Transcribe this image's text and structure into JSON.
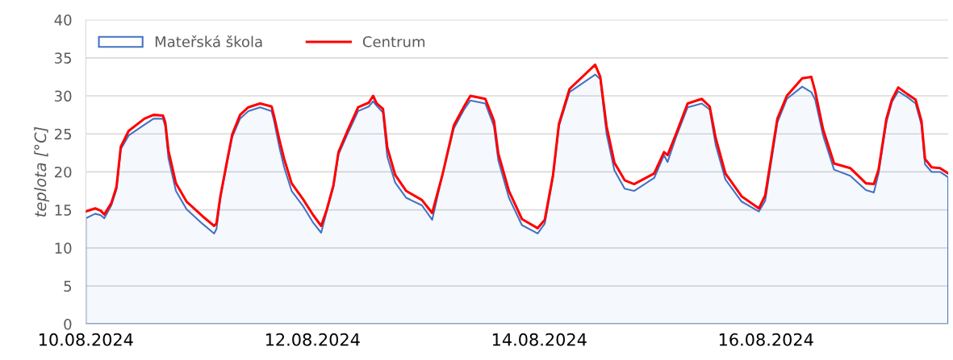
{
  "chart_data": {
    "type": "line",
    "ylabel": "teplota [°C]",
    "x": [
      "2024-08-10T00:00",
      "2024-08-10T02:00",
      "2024-08-10T03:10",
      "2024-08-10T03:55",
      "2024-08-10T05:25",
      "2024-08-10T06:30",
      "2024-08-10T07:25",
      "2024-08-10T09:05",
      "2024-08-10T12:25",
      "2024-08-10T14:20",
      "2024-08-10T16:20",
      "2024-08-10T16:50",
      "2024-08-10T17:30",
      "2024-08-10T19:05",
      "2024-08-10T21:20",
      "2024-08-11T00:40",
      "2024-08-11T03:10",
      "2024-08-11T03:40",
      "2024-08-11T04:30",
      "2024-08-11T06:00",
      "2024-08-11T07:00",
      "2024-08-11T08:40",
      "2024-08-11T10:25",
      "2024-08-11T12:55",
      "2024-08-11T15:20",
      "2024-08-11T15:50",
      "2024-08-11T17:00",
      "2024-08-11T18:00",
      "2024-08-11T19:35",
      "2024-08-11T22:00",
      "2024-08-12T00:10",
      "2024-08-12T01:50",
      "2024-08-12T03:00",
      "2024-08-12T04:25",
      "2024-08-12T05:30",
      "2024-08-12T07:25",
      "2024-08-12T09:40",
      "2024-08-12T11:55",
      "2024-08-12T12:50",
      "2024-08-12T13:35",
      "2024-08-12T14:55",
      "2024-08-12T15:50",
      "2024-08-12T17:30",
      "2024-08-12T19:50",
      "2024-08-12T23:10",
      "2024-08-13T01:20",
      "2024-08-13T03:30",
      "2024-08-13T05:55",
      "2024-08-13T08:05",
      "2024-08-13T09:25",
      "2024-08-13T12:35",
      "2024-08-13T14:25",
      "2024-08-13T15:20",
      "2024-08-13T17:35",
      "2024-08-13T20:20",
      "2024-08-13T23:40",
      "2024-08-14T01:10",
      "2024-08-14T02:55",
      "2024-08-14T04:10",
      "2024-08-14T06:25",
      "2024-08-14T11:50",
      "2024-08-14T12:55",
      "2024-08-14T14:15",
      "2024-08-14T15:55",
      "2024-08-14T18:05",
      "2024-08-14T20:05",
      "2024-08-15T00:20",
      "2024-08-15T02:25",
      "2024-08-15T03:10",
      "2024-08-15T04:55",
      "2024-08-15T07:25",
      "2024-08-15T10:25",
      "2024-08-15T12:05",
      "2024-08-15T13:20",
      "2024-08-15T15:25",
      "2024-08-15T18:50",
      "2024-08-15T22:30",
      "2024-08-15T23:50",
      "2024-08-16T02:25",
      "2024-08-16T04:25",
      "2024-08-16T07:40",
      "2024-08-16T09:35",
      "2024-08-16T10:25",
      "2024-08-16T12:05",
      "2024-08-16T14:25",
      "2024-08-16T17:50",
      "2024-08-16T21:10",
      "2024-08-16T22:50",
      "2024-08-16T23:50",
      "2024-08-17T01:30",
      "2024-08-17T02:40",
      "2024-08-17T04:00",
      "2024-08-17T06:00",
      "2024-08-17T07:40",
      "2024-08-17T08:55",
      "2024-08-17T09:40",
      "2024-08-17T11:05",
      "2024-08-17T12:50",
      "2024-08-17T14:35"
    ],
    "series": [
      {
        "name": "Mateřská škola",
        "type": "area",
        "color": "#4472c4",
        "values": [
          13.9,
          14.5,
          14.3,
          13.9,
          15.6,
          17.7,
          23,
          24.8,
          26.2,
          27,
          27,
          26,
          21.8,
          17.5,
          15.1,
          13.2,
          11.9,
          12.5,
          16.6,
          21.5,
          24.6,
          27,
          28,
          28.5,
          28,
          26.8,
          23.2,
          20.6,
          17.5,
          15.5,
          13.3,
          12,
          14.8,
          18,
          22.3,
          25,
          28,
          28.6,
          29.3,
          28.7,
          27.8,
          22,
          18.6,
          16.6,
          15.6,
          13.7,
          19.6,
          25.7,
          28.2,
          29.4,
          29,
          26,
          21.5,
          16.6,
          13,
          11.9,
          13.2,
          19.3,
          26,
          30.5,
          32.8,
          32.2,
          25,
          20.2,
          17.8,
          17.5,
          19.2,
          22.2,
          21.3,
          24.5,
          28.5,
          29,
          28.2,
          23.6,
          19,
          16.1,
          14.8,
          16.2,
          26.5,
          29.6,
          31.2,
          30.5,
          29.5,
          24.8,
          20.3,
          19.5,
          17.6,
          17.3,
          19.8,
          26.5,
          29.2,
          30.6,
          29.8,
          29,
          26.2,
          21,
          20,
          20,
          19.3
        ]
      },
      {
        "name": "Centrum",
        "color": "#ff0000",
        "values": [
          14.8,
          15.2,
          14.9,
          14.4,
          15.9,
          18,
          23.3,
          25.4,
          27,
          27.5,
          27.4,
          26.5,
          22.8,
          18.5,
          16.1,
          14.2,
          12.9,
          13.2,
          16.8,
          21.7,
          24.9,
          27.5,
          28.5,
          29,
          28.6,
          27.4,
          24.2,
          21.7,
          18.5,
          16.4,
          14.3,
          12.9,
          15,
          18.2,
          22.6,
          25.4,
          28.5,
          29.1,
          30,
          29,
          28.3,
          23.2,
          19.6,
          17.5,
          16.3,
          14.6,
          19.6,
          26.1,
          28.6,
          30,
          29.6,
          26.7,
          22.4,
          17.5,
          13.8,
          12.6,
          13.7,
          19.6,
          26.3,
          30.9,
          34.1,
          32.5,
          26,
          21.2,
          18.9,
          18.4,
          19.8,
          22.6,
          22.2,
          24.9,
          29,
          29.6,
          28.6,
          24.5,
          19.8,
          16.8,
          15.2,
          16.9,
          27,
          30,
          32.3,
          32.5,
          30.6,
          25.6,
          21.1,
          20.5,
          18.5,
          18.4,
          20.3,
          27,
          29.5,
          31.1,
          30.2,
          29.5,
          26.7,
          21.7,
          20.6,
          20.5,
          19.8
        ]
      }
    ],
    "xlim": [
      "2024-08-10T00:00",
      "2024-08-17T14:35"
    ],
    "xticks": [
      {
        "value": "2024-08-10",
        "label": "10.08.2024"
      },
      {
        "value": "2024-08-12",
        "label": "12.08.2024"
      },
      {
        "value": "2024-08-14",
        "label": "14.08.2024"
      },
      {
        "value": "2024-08-16",
        "label": "16.08.2024"
      }
    ],
    "ylim": [
      0,
      40
    ],
    "yticks": [
      0,
      5,
      10,
      15,
      20,
      25,
      30,
      35,
      40
    ],
    "grid": "y",
    "legend": "top left"
  }
}
